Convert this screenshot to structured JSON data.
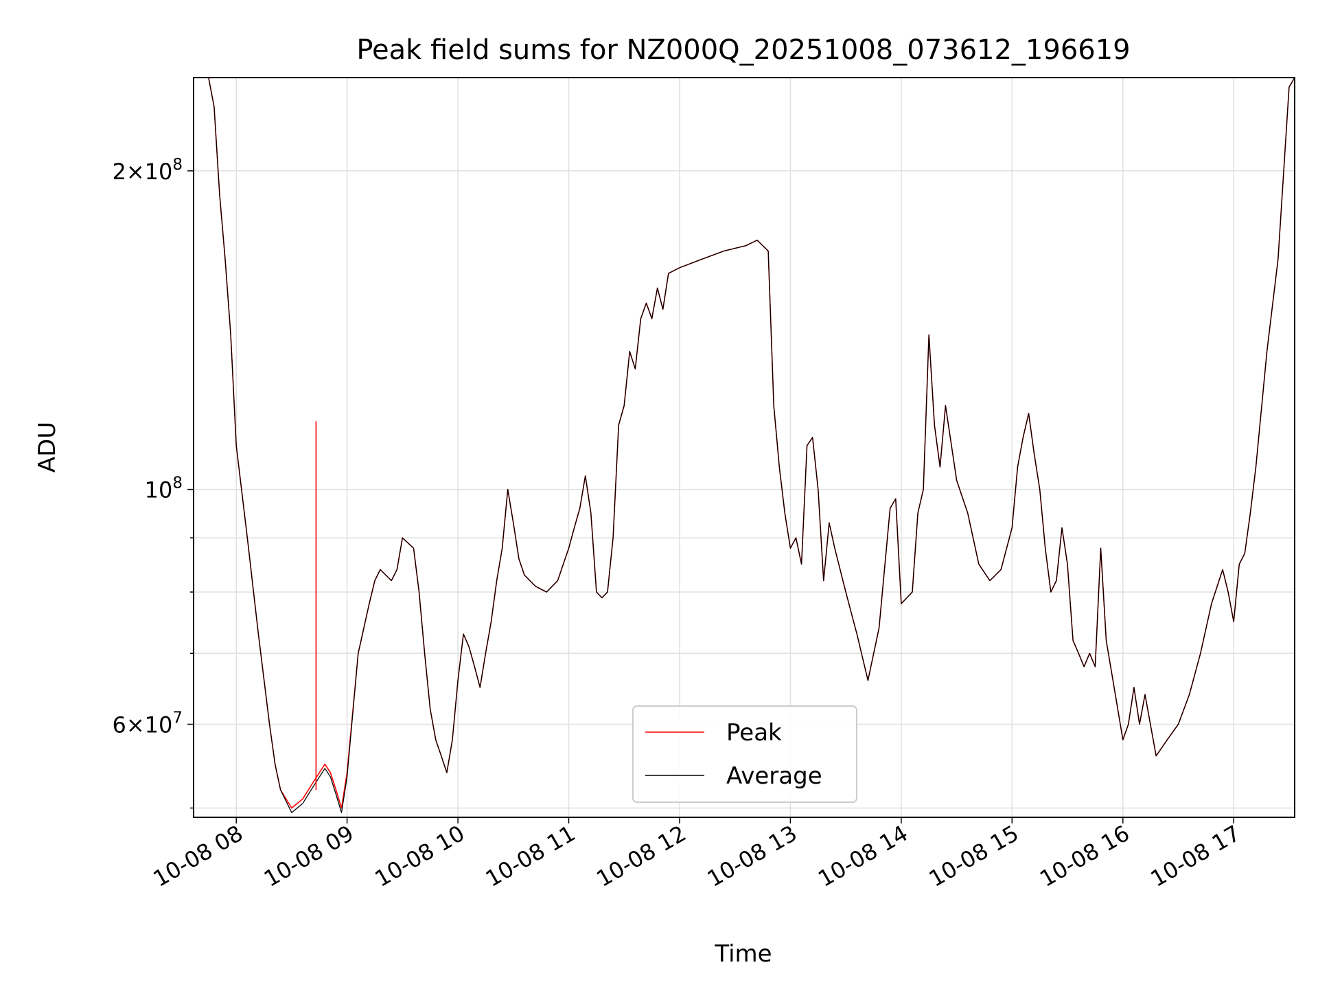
{
  "chart_data": {
    "type": "line",
    "title": "Peak field sums for NZ000Q_20251008_073612_196619",
    "xlabel": "Time",
    "ylabel": "ADU",
    "yscale": "log",
    "ylim": [
      49000000,
      245000000
    ],
    "xlim_hours": [
      7.615,
      17.55
    ],
    "grid": true,
    "legend_position": "lower center",
    "x_tick_values": [
      8,
      9,
      10,
      11,
      12,
      13,
      14,
      15,
      16,
      17
    ],
    "x_tick_labels": [
      "10-08 08",
      "10-08 09",
      "10-08 10",
      "10-08 11",
      "10-08 12",
      "10-08 13",
      "10-08 14",
      "10-08 15",
      "10-08 16",
      "10-08 17"
    ],
    "y_major_ticks": [
      {
        "value": 200000000,
        "mantissa": "2",
        "exponent": "8"
      },
      {
        "value": 100000000,
        "mantissa": "",
        "exponent": "8"
      },
      {
        "value": 60000000,
        "mantissa": "6",
        "exponent": "7"
      }
    ],
    "y_minor_ticks": [
      50000000,
      70000000,
      80000000,
      90000000
    ],
    "x_hours": [
      7.62,
      7.75,
      7.8,
      7.85,
      7.9,
      7.95,
      8.0,
      8.1,
      8.2,
      8.3,
      8.35,
      8.4,
      8.5,
      8.6,
      8.7,
      8.8,
      8.85,
      8.9,
      8.95,
      9.0,
      9.1,
      9.2,
      9.25,
      9.3,
      9.4,
      9.45,
      9.5,
      9.6,
      9.65,
      9.7,
      9.75,
      9.8,
      9.85,
      9.9,
      9.95,
      10.0,
      10.05,
      10.1,
      10.15,
      10.2,
      10.25,
      10.3,
      10.35,
      10.4,
      10.45,
      10.5,
      10.55,
      10.6,
      10.7,
      10.8,
      10.9,
      11.0,
      11.05,
      11.1,
      11.15,
      11.2,
      11.25,
      11.3,
      11.35,
      11.4,
      11.45,
      11.5,
      11.55,
      11.6,
      11.65,
      11.7,
      11.75,
      11.8,
      11.85,
      11.9,
      12.0,
      12.2,
      12.4,
      12.6,
      12.7,
      12.8,
      12.85,
      12.9,
      12.95,
      13.0,
      13.05,
      13.1,
      13.15,
      13.2,
      13.25,
      13.3,
      13.35,
      13.4,
      13.5,
      13.6,
      13.7,
      13.8,
      13.9,
      13.95,
      14.0,
      14.1,
      14.15,
      14.2,
      14.25,
      14.3,
      14.35,
      14.4,
      14.5,
      14.6,
      14.7,
      14.8,
      14.9,
      15.0,
      15.05,
      15.1,
      15.15,
      15.2,
      15.25,
      15.3,
      15.35,
      15.4,
      15.45,
      15.5,
      15.55,
      15.6,
      15.65,
      15.7,
      15.75,
      15.8,
      15.85,
      15.9,
      16.0,
      16.05,
      16.1,
      16.15,
      16.2,
      16.3,
      16.4,
      16.5,
      16.6,
      16.7,
      16.8,
      16.9,
      16.95,
      17.0,
      17.05,
      17.1,
      17.15,
      17.2,
      17.3,
      17.4,
      17.5,
      17.55
    ],
    "series": [
      {
        "name": "Peak",
        "color": "#ff0000",
        "values": [
          245000000,
          245000000,
          230000000,
          190000000,
          165000000,
          140000000,
          110000000,
          90000000,
          73000000,
          60000000,
          55000000,
          52000000,
          50000000,
          51000000,
          53000000,
          55000000,
          54000000,
          52000000,
          50000000,
          54000000,
          70000000,
          78000000,
          82000000,
          84000000,
          82000000,
          84000000,
          90000000,
          88000000,
          80000000,
          70000000,
          62000000,
          58000000,
          56000000,
          54000000,
          58000000,
          66000000,
          73000000,
          71000000,
          68000000,
          65000000,
          70000000,
          75000000,
          82000000,
          88000000,
          100000000,
          93000000,
          86000000,
          83000000,
          81000000,
          80000000,
          82000000,
          88000000,
          92000000,
          96000000,
          103000000,
          95000000,
          80000000,
          79000000,
          80000000,
          90000000,
          115000000,
          120000000,
          135000000,
          130000000,
          145000000,
          150000000,
          145000000,
          155000000,
          148000000,
          160000000,
          162000000,
          165000000,
          168000000,
          170000000,
          172000000,
          168000000,
          120000000,
          105000000,
          95000000,
          88000000,
          90000000,
          85000000,
          110000000,
          112000000,
          100000000,
          82000000,
          93000000,
          88000000,
          80000000,
          73000000,
          66000000,
          74000000,
          96000000,
          98000000,
          78000000,
          80000000,
          95000000,
          100000000,
          140000000,
          115000000,
          105000000,
          120000000,
          102000000,
          95000000,
          85000000,
          82000000,
          84000000,
          92000000,
          105000000,
          112000000,
          118000000,
          108000000,
          100000000,
          88000000,
          80000000,
          82000000,
          92000000,
          85000000,
          72000000,
          70000000,
          68000000,
          70000000,
          68000000,
          88000000,
          72000000,
          67000000,
          58000000,
          60000000,
          65000000,
          60000000,
          64000000,
          56000000,
          58000000,
          60000000,
          64000000,
          70000000,
          78000000,
          84000000,
          80000000,
          75000000,
          85000000,
          87000000,
          95000000,
          105000000,
          135000000,
          165000000,
          240000000,
          245000000
        ]
      },
      {
        "name": "Average",
        "color": "#000000",
        "values": [
          245000000,
          245000000,
          230000000,
          190000000,
          165000000,
          140000000,
          110000000,
          90000000,
          73000000,
          60000000,
          55000000,
          52000000,
          49500000,
          50500000,
          52500000,
          54500000,
          53500000,
          51500000,
          49500000,
          53500000,
          70000000,
          78000000,
          82000000,
          84000000,
          82000000,
          84000000,
          90000000,
          88000000,
          80000000,
          70000000,
          62000000,
          58000000,
          56000000,
          54000000,
          58000000,
          66000000,
          73000000,
          71000000,
          68000000,
          65000000,
          70000000,
          75000000,
          82000000,
          88000000,
          100000000,
          93000000,
          86000000,
          83000000,
          81000000,
          80000000,
          82000000,
          88000000,
          92000000,
          96000000,
          103000000,
          95000000,
          80000000,
          79000000,
          80000000,
          90000000,
          115000000,
          120000000,
          135000000,
          130000000,
          145000000,
          150000000,
          145000000,
          155000000,
          148000000,
          160000000,
          162000000,
          165000000,
          168000000,
          170000000,
          172000000,
          168000000,
          120000000,
          105000000,
          95000000,
          88000000,
          90000000,
          85000000,
          110000000,
          112000000,
          100000000,
          82000000,
          93000000,
          88000000,
          80000000,
          73000000,
          66000000,
          74000000,
          96000000,
          98000000,
          78000000,
          80000000,
          95000000,
          100000000,
          140000000,
          115000000,
          105000000,
          120000000,
          102000000,
          95000000,
          85000000,
          82000000,
          84000000,
          92000000,
          105000000,
          112000000,
          118000000,
          108000000,
          100000000,
          88000000,
          80000000,
          82000000,
          92000000,
          85000000,
          72000000,
          70000000,
          68000000,
          70000000,
          68000000,
          88000000,
          72000000,
          67000000,
          58000000,
          60000000,
          65000000,
          60000000,
          64000000,
          56000000,
          58000000,
          60000000,
          64000000,
          70000000,
          78000000,
          84000000,
          80000000,
          75000000,
          85000000,
          87000000,
          95000000,
          105000000,
          135000000,
          165000000,
          240000000,
          245000000
        ]
      }
    ],
    "spikes": [
      {
        "series": "Peak",
        "x_hour": 8.72,
        "value": 116000000,
        "base_value": 52000000
      }
    ]
  }
}
